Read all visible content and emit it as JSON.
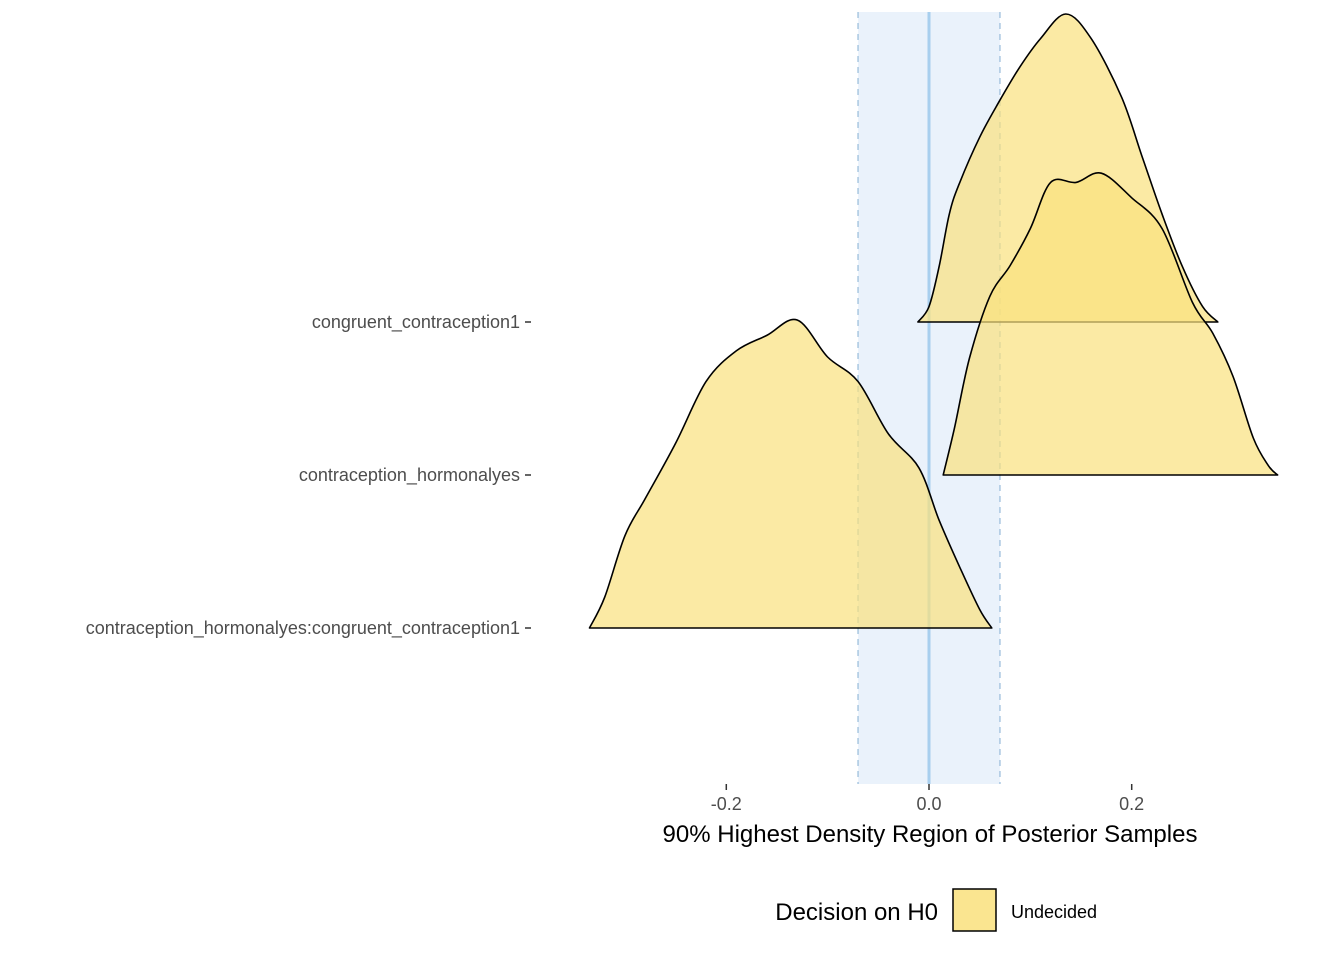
{
  "chart_data": {
    "type": "area",
    "subtype": "ridgeline-density",
    "xlabel": "90% Highest Density Region of Posterior Samples",
    "xlim": [
      -0.365,
      0.345
    ],
    "x_ticks": [
      -0.2,
      0.0,
      0.2
    ],
    "x_tick_labels": [
      "-0.2",
      "0.0",
      "0.2"
    ],
    "rope": {
      "low": -0.07,
      "high": 0.07,
      "fill": "#dceaf9",
      "edge_color": "#a9c7e0"
    },
    "reference_line": {
      "x": 0.0,
      "color": "#a8cfee"
    },
    "categories": [
      "congruent_contraception1",
      "contraception_hormonalyes",
      "contraception_hormonalyes:congruent_contraception1"
    ],
    "series": [
      {
        "name": "congruent_contraception1",
        "decision": "Undecided",
        "hdi": [
          -0.011,
          0.285
        ],
        "density_x": [
          -0.011,
          0.0,
          0.01,
          0.02,
          0.03,
          0.05,
          0.07,
          0.09,
          0.11,
          0.135,
          0.16,
          0.19,
          0.21,
          0.23,
          0.25,
          0.27,
          0.285
        ],
        "density_y": [
          0.0,
          0.05,
          0.18,
          0.35,
          0.45,
          0.6,
          0.72,
          0.83,
          0.92,
          1.0,
          0.92,
          0.73,
          0.54,
          0.35,
          0.18,
          0.05,
          0.0
        ]
      },
      {
        "name": "contraception_hormonalyes",
        "decision": "Undecided",
        "hdi": [
          0.014,
          0.344
        ],
        "density_x": [
          0.014,
          0.025,
          0.04,
          0.06,
          0.08,
          0.1,
          0.12,
          0.145,
          0.17,
          0.2,
          0.23,
          0.26,
          0.28,
          0.3,
          0.32,
          0.335,
          0.344
        ],
        "density_y": [
          0.0,
          0.15,
          0.38,
          0.58,
          0.68,
          0.8,
          0.95,
          0.95,
          0.98,
          0.9,
          0.8,
          0.56,
          0.46,
          0.32,
          0.12,
          0.03,
          0.0
        ]
      },
      {
        "name": "contraception_hormonalyes:congruent_contraception1",
        "decision": "Undecided",
        "hdi": [
          -0.335,
          0.062
        ],
        "density_x": [
          -0.335,
          -0.32,
          -0.3,
          -0.28,
          -0.25,
          -0.22,
          -0.19,
          -0.16,
          -0.13,
          -0.1,
          -0.07,
          -0.04,
          -0.01,
          0.01,
          0.03,
          0.05,
          0.062
        ],
        "density_y": [
          0.0,
          0.1,
          0.3,
          0.42,
          0.6,
          0.8,
          0.9,
          0.95,
          1.0,
          0.88,
          0.8,
          0.63,
          0.52,
          0.35,
          0.2,
          0.06,
          0.0
        ]
      }
    ],
    "density_fill": "#f9e17d",
    "density_stroke": "#000000",
    "grid": false,
    "legend": {
      "title": "Decision on H0",
      "position": "bottom",
      "items": [
        {
          "label": "Undecided",
          "color": "#f9e17d"
        }
      ]
    }
  }
}
